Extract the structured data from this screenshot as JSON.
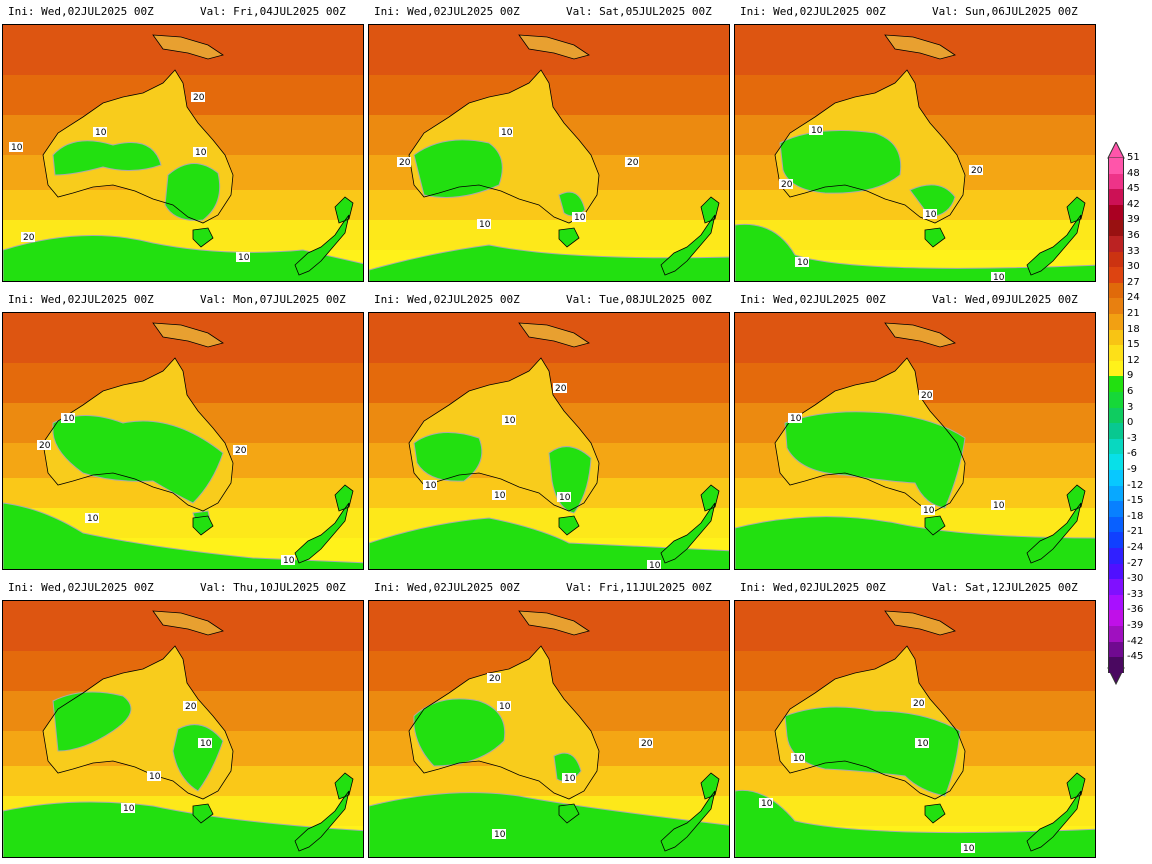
{
  "panels": [
    {
      "ini": "Ini: Wed,02JUL2025 00Z",
      "val": "Val: Fri,04JUL2025 00Z",
      "labels": [
        "10",
        "20",
        "10",
        "20",
        "10",
        "10"
      ]
    },
    {
      "ini": "Ini: Wed,02JUL2025 00Z",
      "val": "Val: Sat,05JUL2025 00Z",
      "labels": [
        "10",
        "20",
        "20",
        "10",
        "10"
      ]
    },
    {
      "ini": "Ini: Wed,02JUL2025 00Z",
      "val": "Val: Sun,06JUL2025 00Z",
      "labels": [
        "10",
        "20",
        "20",
        "10",
        "10",
        "10"
      ]
    },
    {
      "ini": "Ini: Wed,02JUL2025 00Z",
      "val": "Mon,07JUL2025 00Z",
      "val_prefix": "Val:",
      "labels": [
        "10",
        "20",
        "20",
        "10",
        "10"
      ]
    },
    {
      "ini": "Ini: Wed,02JUL2025 00Z",
      "val": "Val: Tue,08JUL2025 00Z",
      "labels": [
        "20",
        "10",
        "10",
        "10",
        "10",
        "10"
      ]
    },
    {
      "ini": "Ini: Wed,02JUL2025 00Z",
      "val": "Val: Wed,09JUL2025 00Z",
      "labels": [
        "20",
        "10",
        "10",
        "10"
      ]
    },
    {
      "ini": "Ini: Wed,02JUL2025 00Z",
      "val": "Val: Thu,10JUL2025 00Z",
      "labels": [
        "20",
        "10",
        "10",
        "10"
      ]
    },
    {
      "ini": "Ini: Wed,02JUL2025 00Z",
      "val": "Val: Fri,11JUL2025 00Z",
      "labels": [
        "20",
        "10",
        "20",
        "10",
        "10"
      ]
    },
    {
      "ini": "Ini: Wed,02JUL2025 00Z",
      "val": "Val: Sat,12JUL2025 00Z",
      "labels": [
        "20",
        "10",
        "10",
        "10",
        "10"
      ]
    }
  ],
  "colorbar": {
    "labels": [
      "51",
      "48",
      "45",
      "42",
      "39",
      "36",
      "33",
      "30",
      "27",
      "24",
      "21",
      "18",
      "15",
      "12",
      "9",
      "6",
      "3",
      "0",
      "-3",
      "-6",
      "-9",
      "-12",
      "-15",
      "-18",
      "-21",
      "-24",
      "-27",
      "-30",
      "-33",
      "-36",
      "-39",
      "-42",
      "-45"
    ],
    "colors": [
      "#ff55aa",
      "#ee3388",
      "#cc1155",
      "#aa0022",
      "#991111",
      "#bb2222",
      "#cc3311",
      "#dd4411",
      "#e06a0a",
      "#e88010",
      "#f2a012",
      "#f8c414",
      "#fde018",
      "#fff21a",
      "#22e010",
      "#16d838",
      "#0fcc60",
      "#08c890",
      "#08d8c0",
      "#08e0e8",
      "#08c8ff",
      "#08a8ff",
      "#0880ff",
      "#0860ff",
      "#1040ff",
      "#3020ff",
      "#5010ff",
      "#8010ff",
      "#a810ff",
      "#c010e8",
      "#a010c0",
      "#700a90",
      "#4a0860"
    ]
  }
}
